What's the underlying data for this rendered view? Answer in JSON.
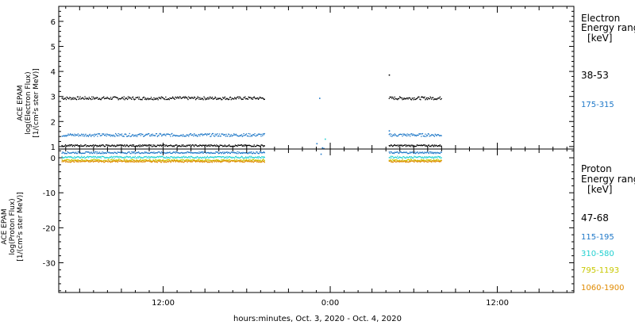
{
  "chart_data": [
    {
      "type": "scatter",
      "panel": "electron",
      "ylabel_lines": [
        "ACE EPAM",
        "log(Electron Flux)",
        "[1/(cm²s ster MeV)]"
      ],
      "ylim": [
        0.9,
        6.6
      ],
      "yticks": [
        "1",
        "2",
        "3",
        "4",
        "5",
        "6"
      ],
      "legend_title": [
        "Electron",
        "Energy range",
        "[keV]"
      ],
      "series": [
        {
          "name": "38-53",
          "color": "#000000",
          "level": 2.95,
          "outlier": {
            "x": 28.2,
            "y": 3.88
          }
        },
        {
          "name": "175-315",
          "color": "#1e78c8",
          "level": 1.48,
          "outlier": {
            "x": 28.2,
            "y": 1.65
          }
        }
      ],
      "gap_points": [
        {
          "x": 23.2,
          "y": 2.95,
          "color": "#1e78c8"
        },
        {
          "x": 23.4,
          "y": 0.97,
          "color": "#1e78c8"
        }
      ]
    },
    {
      "type": "scatter",
      "panel": "proton",
      "ylabel_lines": [
        "ACE EPAM",
        "log(Proton Flux)",
        "[1/(cm²s ster MeV)]"
      ],
      "ylim": [
        -38.5,
        2.5
      ],
      "yticks": [
        "0",
        "-10",
        "-20",
        "-30"
      ],
      "legend_title": [
        "Proton",
        "Energy range",
        "[keV]"
      ],
      "series": [
        {
          "name": "47-68",
          "color": "#000000",
          "level": 3.6
        },
        {
          "name": "115-195",
          "color": "#1e78c8",
          "level": 1.6
        },
        {
          "name": "310-580",
          "color": "#22d0d0",
          "level": 0.3
        },
        {
          "name": "795-1193",
          "color": "#c8c800",
          "level": -0.6
        },
        {
          "name": "1060-1900",
          "color": "#e08a00",
          "level": -0.9
        }
      ],
      "gap_points": [
        {
          "x": 23.0,
          "y": 4.2,
          "color": "#1e78c8"
        },
        {
          "x": 23.3,
          "y": 1.2,
          "color": "#1e78c8"
        },
        {
          "x": 23.6,
          "y": 5.5,
          "color": "#22d0d0"
        },
        {
          "x": 23.5,
          "y": 2.8,
          "color": "#1e78c8"
        }
      ]
    }
  ],
  "time_axis": {
    "start_hour": 4.5,
    "end_hour": 41.5,
    "tick_labels": [
      {
        "hour": 12,
        "label": "12:00"
      },
      {
        "hour": 24,
        "label": "0:00"
      },
      {
        "hour": 36,
        "label": "12:00"
      }
    ],
    "data_segments": [
      [
        4.7,
        19.3
      ],
      [
        28.2,
        32.0
      ]
    ],
    "xlabel": "hours:minutes, Oct.  3, 2020 - Oct.  4, 2020"
  }
}
